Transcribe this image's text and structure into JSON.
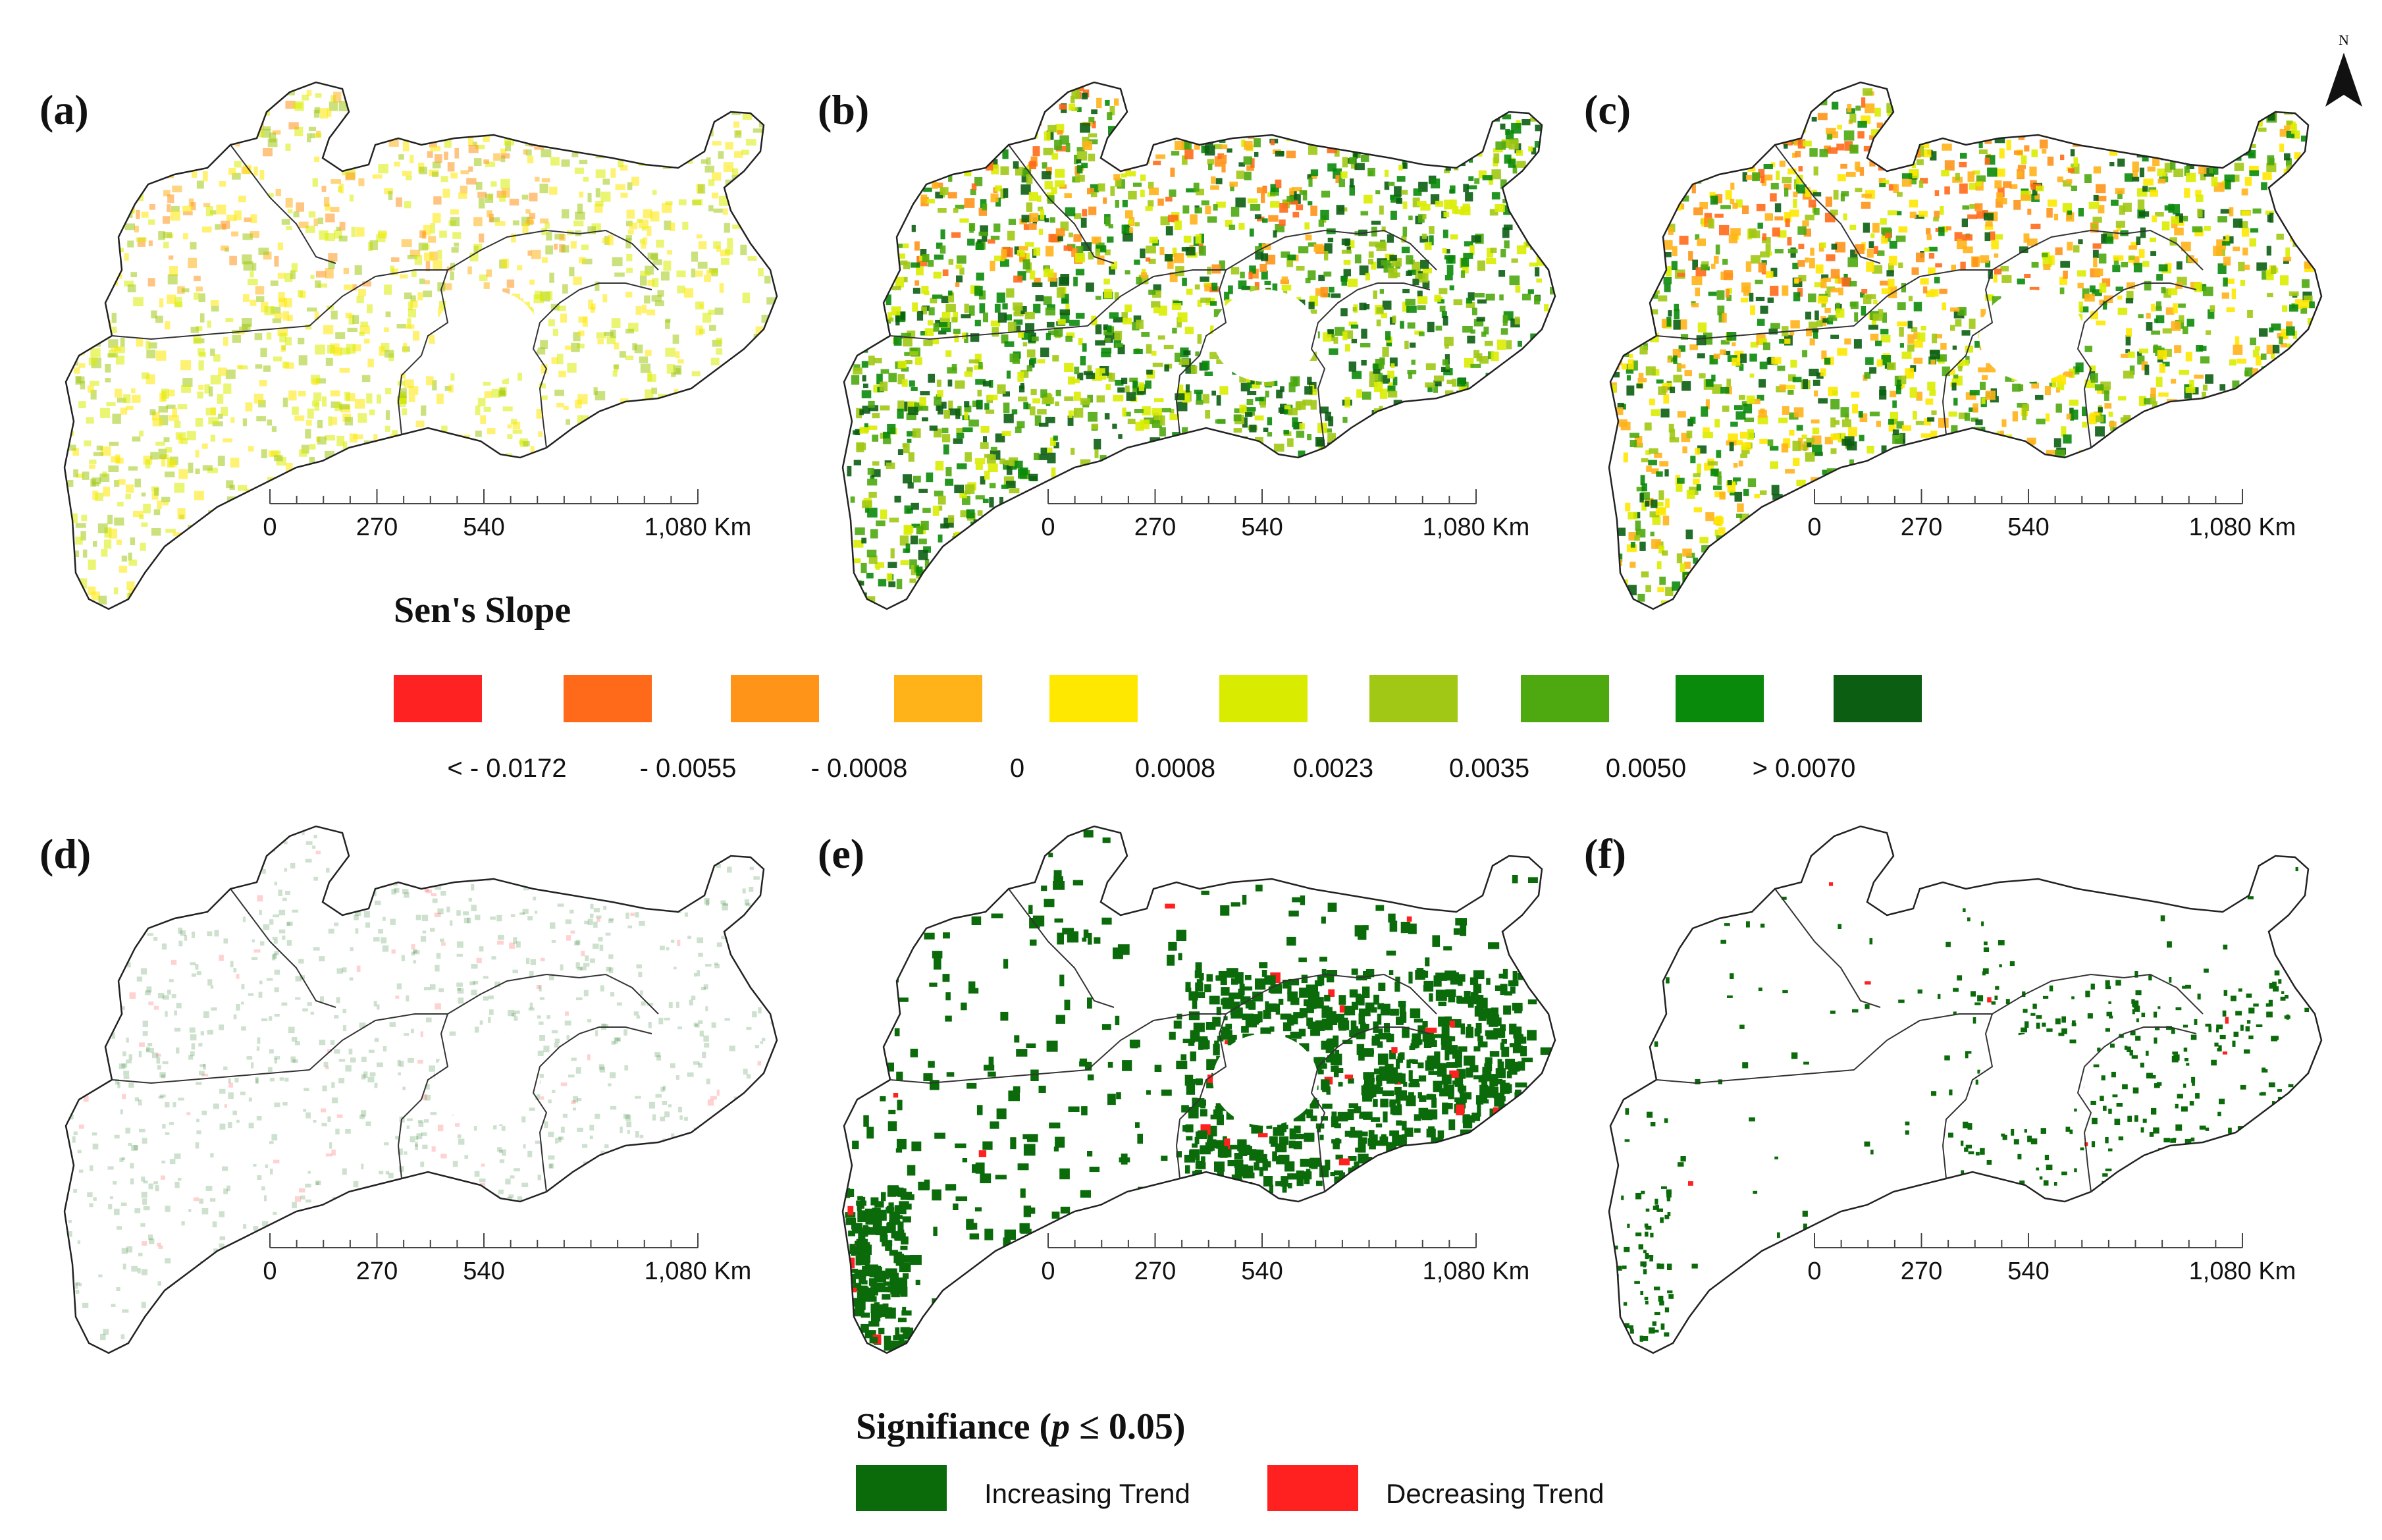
{
  "north_arrow": {
    "label": "N"
  },
  "scale_bar": {
    "ticks": [
      "0",
      "270",
      "540",
      "1,080 Km"
    ]
  },
  "panels": [
    {
      "label": "(a)",
      "kind": "slope",
      "pattern": "faint"
    },
    {
      "label": "(b)",
      "kind": "slope",
      "pattern": "strong"
    },
    {
      "label": "(c)",
      "kind": "slope",
      "pattern": "mixed"
    },
    {
      "label": "(d)",
      "kind": "significance",
      "pattern": "faint"
    },
    {
      "label": "(e)",
      "kind": "significance",
      "pattern": "dense"
    },
    {
      "label": "(f)",
      "kind": "significance",
      "pattern": "sparse"
    }
  ],
  "slope_legend": {
    "title": "Sen's Slope",
    "colors": [
      "#ff2222",
      "#ff6a1a",
      "#ff9419",
      "#ffb319",
      "#ffe800",
      "#d9ec00",
      "#a0c814",
      "#4ea80f",
      "#0a8a0a",
      "#0b5e12"
    ],
    "ticks": [
      "< - 0.0172",
      "- 0.0055",
      "- 0.0008",
      "0",
      "0.0008",
      "0.0023",
      "0.0035",
      "0.0050",
      "> 0.0070"
    ]
  },
  "significance_legend": {
    "title_prefix": "Signifiance (",
    "title_p": "p",
    "title_suffix": " ≤ 0.05)",
    "items": [
      {
        "label": "Increasing Trend",
        "color": "#0b6b0b"
      },
      {
        "label": "Decreasing Trend",
        "color": "#ff2020"
      }
    ]
  }
}
